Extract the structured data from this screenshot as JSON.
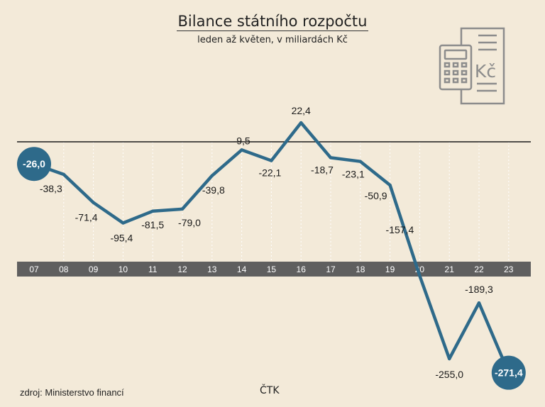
{
  "header": {
    "title": "Bilance státního rozpočtu",
    "subtitle": "leden až květen, v miliardách Kč"
  },
  "footer": {
    "source": "zdroj: Ministerstvo financí",
    "agency": "ČTK"
  },
  "icon": {
    "name": "calculator-document-icon",
    "label": "Kč"
  },
  "colors": {
    "background": "#f3ead9",
    "line": "#2e6a8a",
    "axis_band": "#5f5f5f",
    "highlight": "#2e6a8a"
  },
  "chart_data": {
    "type": "line",
    "title": "Bilance státního rozpočtu",
    "subtitle": "leden až květen, v miliardách Kč",
    "categories": [
      "07",
      "08",
      "09",
      "10",
      "11",
      "12",
      "13",
      "14",
      "15",
      "16",
      "17",
      "18",
      "19",
      "20",
      "21",
      "22",
      "23"
    ],
    "series": [
      {
        "values": [
          -26.0,
          -38.3,
          -71.4,
          -95.4,
          -81.5,
          -79.0,
          -39.8,
          -9.5,
          -22.1,
          22.4,
          -18.7,
          -23.1,
          -50.9,
          -157.4,
          -255.0,
          -189.3,
          -271.4
        ]
      }
    ],
    "data_labels": [
      "-26,0",
      "-38,3",
      "-71,4",
      "-95,4",
      "-81,5",
      "-79,0",
      "-39,8",
      "-9,5",
      "-22,1",
      "22,4",
      "-18,7",
      "-23,1",
      "-50,9",
      "-157,4",
      "-255,0",
      "-189,3",
      "-271,4"
    ],
    "highlighted": [
      "07",
      "23"
    ],
    "ylim": [
      -285,
      30
    ],
    "grid": "vertical dotted",
    "legend": "none"
  }
}
